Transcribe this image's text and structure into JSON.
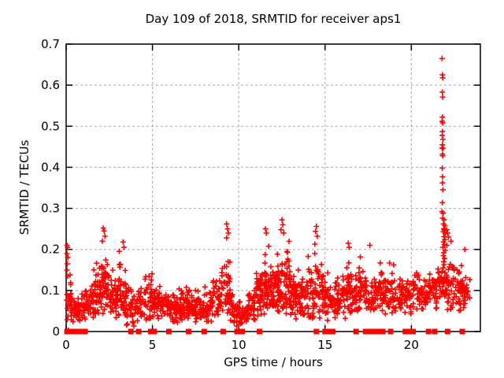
{
  "chart_data": {
    "type": "scatter",
    "title": "Day 109 of 2018, SRMTID for receiver aps1",
    "xlabel": "GPS time / hours",
    "ylabel": "SRMTID / TECUs",
    "xlim": [
      0,
      24
    ],
    "ylim": [
      0,
      0.7
    ],
    "x_ticks": {
      "values": [
        0,
        5,
        10,
        15,
        20
      ],
      "labels": [
        "0",
        "5",
        "10",
        "15",
        "20"
      ]
    },
    "y_ticks": {
      "values": [
        0,
        0.1,
        0.2,
        0.3,
        0.4,
        0.5,
        0.6,
        0.7
      ],
      "labels": [
        "0",
        "0.1",
        "0.2",
        "0.3",
        "0.4",
        "0.5",
        "0.6",
        "0.7"
      ]
    },
    "grid": true,
    "legend": false,
    "series_name": "SRMTID",
    "marker": {
      "shape": "plus",
      "size": 7,
      "color": "#ff0000"
    },
    "colors": {
      "marker": "#ff0000",
      "grid": "#a8a8a8",
      "border": "#000000",
      "text": "#000000",
      "background": "#ffffff"
    },
    "seed": 109,
    "spike_points": [
      [
        21.78,
        0.665
      ],
      [
        21.8,
        0.625
      ],
      [
        21.82,
        0.618
      ],
      [
        21.79,
        0.583
      ],
      [
        21.81,
        0.571
      ],
      [
        21.8,
        0.522
      ],
      [
        21.78,
        0.512
      ],
      [
        21.82,
        0.508
      ],
      [
        21.8,
        0.487
      ],
      [
        21.79,
        0.478
      ],
      [
        21.83,
        0.468
      ],
      [
        21.8,
        0.455
      ],
      [
        21.78,
        0.447
      ],
      [
        21.84,
        0.446
      ],
      [
        21.8,
        0.432
      ],
      [
        21.82,
        0.428
      ],
      [
        21.79,
        0.398
      ],
      [
        21.81,
        0.377
      ],
      [
        21.8,
        0.362
      ],
      [
        21.83,
        0.345
      ],
      [
        21.8,
        0.314
      ],
      [
        21.78,
        0.292
      ],
      [
        21.84,
        0.288
      ],
      [
        21.81,
        0.276
      ],
      [
        21.9,
        0.272
      ],
      [
        21.86,
        0.262
      ],
      [
        21.95,
        0.258
      ],
      [
        21.88,
        0.25
      ],
      [
        21.92,
        0.247
      ],
      [
        21.85,
        0.243
      ],
      [
        21.97,
        0.238
      ],
      [
        21.89,
        0.231
      ],
      [
        21.94,
        0.224
      ],
      [
        21.86,
        0.218
      ],
      [
        21.91,
        0.212
      ],
      [
        21.83,
        0.205
      ],
      [
        21.96,
        0.198
      ],
      [
        21.88,
        0.192
      ],
      [
        21.85,
        0.185
      ],
      [
        21.93,
        0.178
      ],
      [
        21.87,
        0.17
      ],
      [
        21.9,
        0.163
      ],
      [
        21.84,
        0.155
      ]
    ],
    "peak_points": [
      [
        0.05,
        0.21
      ],
      [
        0.08,
        0.205
      ],
      [
        0.05,
        0.19
      ],
      [
        0.1,
        0.18
      ],
      [
        0.07,
        0.165
      ],
      [
        0.05,
        0.15
      ],
      [
        0.09,
        0.135
      ],
      [
        2.15,
        0.252
      ],
      [
        2.2,
        0.245
      ],
      [
        2.25,
        0.232
      ],
      [
        2.1,
        0.22
      ],
      [
        3.3,
        0.218
      ],
      [
        3.35,
        0.205
      ],
      [
        9.3,
        0.262
      ],
      [
        9.35,
        0.25
      ],
      [
        9.4,
        0.24
      ],
      [
        9.3,
        0.228
      ],
      [
        11.55,
        0.25
      ],
      [
        11.6,
        0.24
      ],
      [
        12.5,
        0.272
      ],
      [
        12.55,
        0.26
      ],
      [
        12.45,
        0.248
      ],
      [
        12.6,
        0.24
      ],
      [
        14.5,
        0.256
      ],
      [
        14.45,
        0.244
      ],
      [
        14.55,
        0.232
      ],
      [
        16.35,
        0.215
      ],
      [
        16.4,
        0.205
      ],
      [
        17.6,
        0.21
      ],
      [
        22.05,
        0.248
      ],
      [
        22.1,
        0.24
      ],
      [
        22.15,
        0.23
      ],
      [
        22.3,
        0.22
      ],
      [
        23.1,
        0.2
      ]
    ],
    "zero_points_x": [
      0.05,
      0.15,
      0.3,
      0.55,
      0.7,
      0.95,
      1.1,
      3.75,
      4.2,
      4.9,
      5.1,
      5.95,
      7.1,
      8.0,
      9.1,
      9.9,
      10.2,
      11.2,
      14.5,
      15.0,
      15.25,
      15.45,
      16.8,
      17.35,
      17.5,
      17.65,
      17.8,
      17.95,
      18.1,
      18.35,
      18.8,
      19.65,
      19.8,
      19.95,
      20.1,
      21.0,
      21.35,
      22.1,
      22.95
    ],
    "cloud_bands": [
      [
        0.0,
        0.3,
        22,
        0.0,
        0.2
      ],
      [
        0.3,
        1.0,
        45,
        0.02,
        0.12
      ],
      [
        1.0,
        1.5,
        40,
        0.02,
        0.13
      ],
      [
        1.5,
        2.0,
        45,
        0.03,
        0.19
      ],
      [
        2.0,
        2.5,
        50,
        0.03,
        0.23
      ],
      [
        2.5,
        3.0,
        45,
        0.03,
        0.17
      ],
      [
        3.0,
        3.5,
        45,
        0.03,
        0.21
      ],
      [
        3.5,
        4.0,
        30,
        0.01,
        0.13
      ],
      [
        4.0,
        4.5,
        30,
        0.02,
        0.15
      ],
      [
        4.5,
        5.0,
        40,
        0.02,
        0.19
      ],
      [
        5.0,
        5.5,
        35,
        0.02,
        0.13
      ],
      [
        5.5,
        6.0,
        35,
        0.02,
        0.14
      ],
      [
        6.0,
        6.5,
        40,
        0.02,
        0.12
      ],
      [
        6.5,
        7.0,
        40,
        0.02,
        0.14
      ],
      [
        7.0,
        7.5,
        40,
        0.02,
        0.13
      ],
      [
        7.5,
        8.0,
        40,
        0.02,
        0.12
      ],
      [
        8.0,
        8.5,
        35,
        0.02,
        0.13
      ],
      [
        8.5,
        9.0,
        35,
        0.03,
        0.18
      ],
      [
        9.0,
        9.5,
        40,
        0.03,
        0.24
      ],
      [
        9.5,
        10.0,
        35,
        0.01,
        0.12
      ],
      [
        10.0,
        10.5,
        30,
        0.01,
        0.09
      ],
      [
        10.5,
        11.0,
        35,
        0.02,
        0.14
      ],
      [
        11.0,
        11.5,
        45,
        0.03,
        0.2
      ],
      [
        11.5,
        12.0,
        50,
        0.03,
        0.24
      ],
      [
        12.0,
        12.5,
        50,
        0.04,
        0.22
      ],
      [
        12.5,
        13.0,
        50,
        0.04,
        0.25
      ],
      [
        13.0,
        13.5,
        45,
        0.03,
        0.2
      ],
      [
        13.5,
        14.0,
        40,
        0.03,
        0.17
      ],
      [
        14.0,
        14.5,
        40,
        0.03,
        0.22
      ],
      [
        14.5,
        15.0,
        40,
        0.03,
        0.24
      ],
      [
        15.0,
        15.5,
        35,
        0.02,
        0.16
      ],
      [
        15.5,
        16.0,
        35,
        0.03,
        0.18
      ],
      [
        16.0,
        16.5,
        40,
        0.03,
        0.2
      ],
      [
        16.5,
        17.0,
        40,
        0.04,
        0.18
      ],
      [
        17.0,
        17.5,
        35,
        0.04,
        0.2
      ],
      [
        17.5,
        18.0,
        35,
        0.04,
        0.16
      ],
      [
        18.0,
        18.5,
        35,
        0.04,
        0.18
      ],
      [
        18.5,
        19.0,
        35,
        0.04,
        0.19
      ],
      [
        19.0,
        19.5,
        35,
        0.04,
        0.17
      ],
      [
        19.5,
        20.0,
        30,
        0.04,
        0.16
      ],
      [
        20.0,
        20.5,
        30,
        0.05,
        0.17
      ],
      [
        20.5,
        21.0,
        30,
        0.05,
        0.15
      ],
      [
        21.0,
        21.5,
        35,
        0.05,
        0.18
      ],
      [
        21.5,
        21.8,
        20,
        0.05,
        0.2
      ],
      [
        21.8,
        22.0,
        12,
        0.06,
        0.18
      ],
      [
        22.0,
        22.5,
        40,
        0.04,
        0.22
      ],
      [
        22.5,
        23.0,
        35,
        0.04,
        0.2
      ],
      [
        23.0,
        23.4,
        25,
        0.05,
        0.17
      ]
    ]
  }
}
